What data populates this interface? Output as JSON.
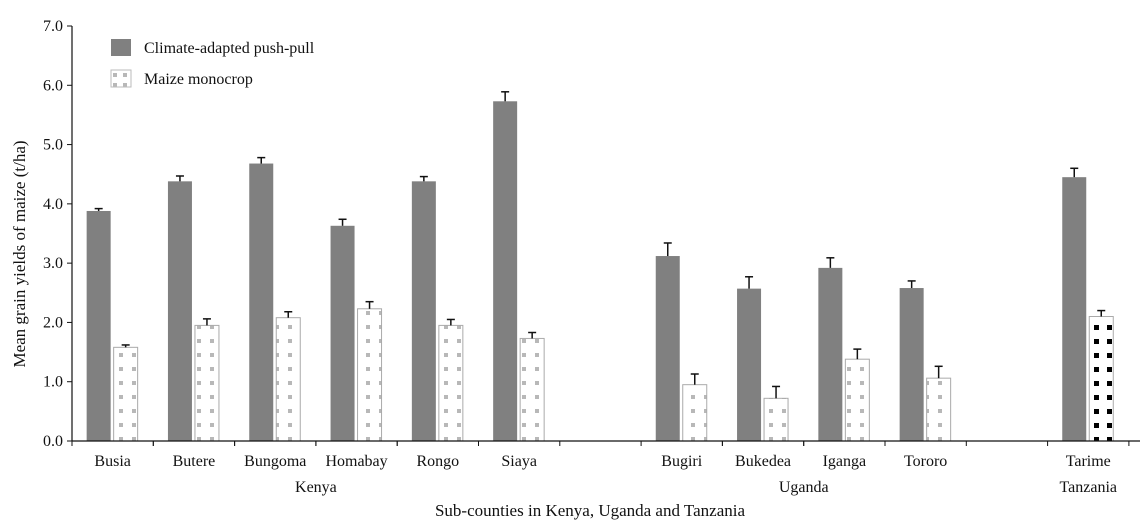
{
  "chart_data": {
    "type": "bar",
    "xlabel": "Sub-counties in Kenya, Uganda and Tanzania",
    "ylabel": "Mean grain yields of maize (t/ha)",
    "ylim": [
      0,
      7
    ],
    "yticks": [
      "0.0",
      "1.0",
      "2.0",
      "3.0",
      "4.0",
      "5.0",
      "6.0",
      "7.0"
    ],
    "grid": false,
    "legend_position": "top-left",
    "categories": [
      "Busia",
      "Butere",
      "Bungoma",
      "Homabay",
      "Rongo",
      "Siaya",
      "Bugiri",
      "Bukedea",
      "Iganga",
      "Tororo",
      "Tarime"
    ],
    "groups": [
      {
        "label": "Kenya",
        "members": [
          "Busia",
          "Butere",
          "Bungoma",
          "Homabay",
          "Rongo",
          "Siaya"
        ]
      },
      {
        "label": "Uganda",
        "members": [
          "Bugiri",
          "Bukedea",
          "Iganga",
          "Tororo"
        ]
      },
      {
        "label": "Tanzania",
        "members": [
          "Tarime"
        ]
      }
    ],
    "series": [
      {
        "name": "Climate-adapted push-pull",
        "color": "#808080",
        "values": [
          3.88,
          4.38,
          4.68,
          3.63,
          4.38,
          5.73,
          3.12,
          2.57,
          2.92,
          2.58,
          4.45
        ],
        "errors": [
          0.04,
          0.09,
          0.1,
          0.11,
          0.08,
          0.16,
          0.22,
          0.2,
          0.17,
          0.12,
          0.15
        ]
      },
      {
        "name": "Maize monocrop",
        "color": "#ffffff",
        "pattern_color": "#b8b8b8",
        "tarime_pattern_color": "#000000",
        "values": [
          1.58,
          1.95,
          2.08,
          2.23,
          1.95,
          1.73,
          0.95,
          0.72,
          1.38,
          1.06,
          2.1
        ],
        "errors": [
          0.04,
          0.11,
          0.1,
          0.12,
          0.1,
          0.1,
          0.18,
          0.2,
          0.17,
          0.2,
          0.1
        ]
      }
    ]
  }
}
